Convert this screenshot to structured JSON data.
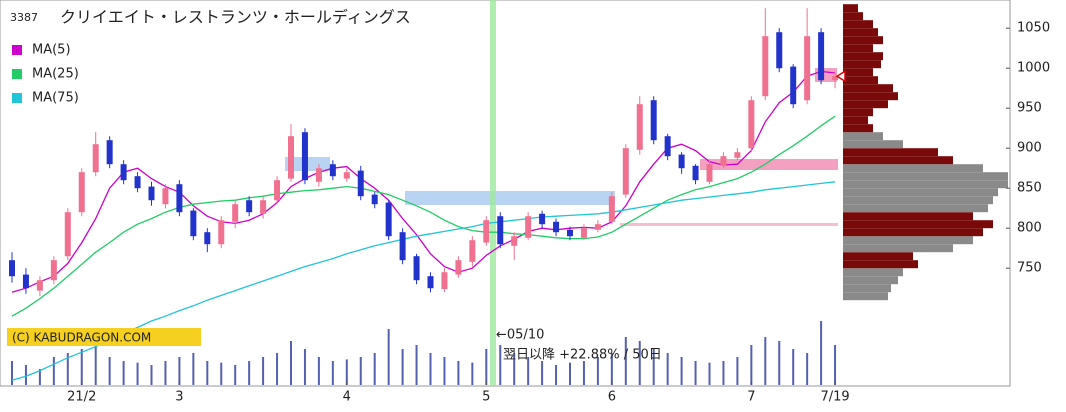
{
  "chart_data": {
    "type": "candlestick",
    "code": "3387",
    "title": "クリイエイト・レストランツ・ホールディングス",
    "categories": [
      null,
      null,
      null,
      null,
      null,
      "21/2",
      null,
      null,
      null,
      null,
      null,
      null,
      "3",
      null,
      null,
      null,
      null,
      null,
      null,
      null,
      null,
      null,
      null,
      null,
      "4",
      null,
      null,
      null,
      null,
      null,
      null,
      null,
      null,
      null,
      "5",
      null,
      null,
      null,
      null,
      null,
      null,
      null,
      null,
      "6",
      null,
      null,
      null,
      null,
      null,
      null,
      null,
      null,
      null,
      "7",
      null,
      null,
      null,
      null,
      null,
      "7/19"
    ],
    "open": [
      760,
      742,
      722,
      735,
      765,
      820,
      870,
      910,
      880,
      865,
      852,
      830,
      855,
      822,
      795,
      780,
      808,
      835,
      818,
      835,
      862,
      920,
      858,
      880,
      862,
      872,
      842,
      832,
      795,
      765,
      740,
      724,
      742,
      758,
      782,
      815,
      778,
      788,
      818,
      808,
      798,
      788,
      798,
      808,
      842,
      898,
      960,
      915,
      892,
      878,
      858,
      878,
      888,
      900,
      965,
      1045,
      1002,
      960,
      1045,
      985
    ],
    "high": [
      770,
      750,
      740,
      765,
      825,
      875,
      920,
      915,
      885,
      870,
      858,
      855,
      860,
      825,
      800,
      815,
      835,
      840,
      840,
      865,
      930,
      925,
      880,
      885,
      875,
      878,
      845,
      835,
      800,
      768,
      745,
      750,
      765,
      790,
      815,
      820,
      795,
      820,
      822,
      812,
      802,
      805,
      810,
      845,
      905,
      965,
      965,
      918,
      895,
      880,
      885,
      895,
      900,
      965,
      1075,
      1050,
      1005,
      1075,
      1050,
      995
    ],
    "low": [
      732,
      718,
      715,
      730,
      760,
      815,
      865,
      875,
      855,
      845,
      828,
      825,
      815,
      785,
      770,
      775,
      800,
      815,
      812,
      830,
      858,
      855,
      852,
      860,
      858,
      835,
      825,
      785,
      755,
      730,
      720,
      720,
      738,
      752,
      778,
      775,
      760,
      785,
      800,
      790,
      785,
      785,
      795,
      805,
      838,
      892,
      905,
      885,
      868,
      855,
      855,
      875,
      885,
      895,
      960,
      995,
      950,
      955,
      980,
      975
    ],
    "close": [
      740,
      725,
      735,
      760,
      820,
      870,
      905,
      880,
      860,
      850,
      835,
      850,
      820,
      790,
      780,
      810,
      830,
      820,
      835,
      860,
      915,
      860,
      875,
      865,
      870,
      840,
      830,
      790,
      760,
      735,
      725,
      745,
      760,
      785,
      810,
      780,
      790,
      815,
      805,
      795,
      790,
      800,
      805,
      840,
      900,
      955,
      910,
      890,
      875,
      860,
      880,
      890,
      895,
      960,
      1040,
      1000,
      955,
      1040,
      985,
      990
    ],
    "up_color": "#f07090",
    "down_color": "#2233cc",
    "series": [
      {
        "name": "MA(5)",
        "color": "#cc00cc",
        "values": [
          720,
          725,
          733,
          740,
          756,
          782,
          812,
          850,
          870,
          875,
          862,
          852,
          845,
          828,
          815,
          808,
          806,
          810,
          818,
          832,
          852,
          862,
          870,
          875,
          877,
          862,
          850,
          835,
          812,
          792,
          768,
          752,
          745,
          750,
          766,
          778,
          786,
          796,
          800,
          798,
          800,
          801,
          800,
          808,
          828,
          858,
          880,
          900,
          905,
          897,
          883,
          879,
          880,
          897,
          933,
          957,
          970,
          990,
          996,
          994
        ]
      },
      {
        "name": "MA(25)",
        "color": "#22cc66",
        "values": [
          690,
          700,
          712,
          725,
          740,
          755,
          770,
          782,
          795,
          805,
          812,
          820,
          826,
          830,
          832,
          834,
          835,
          838,
          840,
          843,
          845,
          847,
          848,
          850,
          852,
          850,
          846,
          842,
          835,
          828,
          820,
          810,
          802,
          797,
          795,
          795,
          793,
          792,
          790,
          788,
          787,
          787,
          789,
          795,
          805,
          815,
          825,
          835,
          842,
          848,
          852,
          857,
          862,
          870,
          880,
          892,
          903,
          915,
          928,
          940
        ]
      },
      {
        "name": "MA(75)",
        "color": "#22c4d8",
        "values": [
          610,
          615,
          622,
          630,
          638,
          645,
          652,
          660,
          668,
          676,
          684,
          690,
          697,
          703,
          710,
          716,
          722,
          728,
          734,
          740,
          746,
          752,
          757,
          762,
          768,
          773,
          778,
          782,
          786,
          790,
          793,
          796,
          799,
          802,
          806,
          808,
          810,
          812,
          814,
          815,
          816,
          817,
          818,
          820,
          823,
          826,
          829,
          832,
          835,
          837,
          839,
          841,
          843,
          845,
          848,
          850,
          852,
          854,
          856,
          858
        ]
      }
    ],
    "volume": {
      "color": "#5560b0",
      "ylim": [
        0,
        100
      ],
      "values": [
        30,
        25,
        20,
        35,
        40,
        45,
        50,
        35,
        30,
        28,
        25,
        30,
        35,
        40,
        30,
        28,
        25,
        30,
        35,
        40,
        55,
        45,
        35,
        30,
        32,
        35,
        40,
        70,
        45,
        50,
        40,
        35,
        30,
        28,
        45,
        50,
        40,
        35,
        30,
        25,
        28,
        30,
        35,
        40,
        60,
        55,
        45,
        40,
        35,
        30,
        28,
        30,
        35,
        50,
        60,
        55,
        45,
        40,
        80,
        50
      ]
    },
    "volume_profile": {
      "xlim": [
        0,
        170
      ],
      "bins": [
        710,
        720,
        730,
        740,
        750,
        760,
        770,
        780,
        790,
        800,
        810,
        820,
        830,
        840,
        850,
        860,
        870,
        880,
        890,
        900,
        910,
        920,
        930,
        940,
        950,
        960,
        970,
        980,
        990,
        1000,
        1010,
        1020,
        1030,
        1040,
        1050,
        1060,
        1070,
        1080
      ],
      "values": [
        45,
        48,
        55,
        60,
        75,
        70,
        110,
        130,
        140,
        150,
        130,
        145,
        150,
        155,
        165,
        165,
        140,
        110,
        95,
        60,
        40,
        30,
        25,
        30,
        45,
        55,
        50,
        35,
        30,
        38,
        40,
        30,
        40,
        35,
        30,
        20,
        15
      ],
      "colors": [
        "#8a8a8a",
        "#8a8a8a",
        "#8a8a8a",
        "#8a8a8a",
        "#7a0a0a",
        "#7a0a0a",
        "#8a8a8a",
        "#8a8a8a",
        "#7a0a0a",
        "#7a0a0a",
        "#7a0a0a",
        "#8a8a8a",
        "#8a8a8a",
        "#8a8a8a",
        "#8a8a8a",
        "#8a8a8a",
        "#8a8a8a",
        "#7a0a0a",
        "#7a0a0a",
        "#8a8a8a",
        "#8a8a8a",
        "#7a0a0a",
        "#7a0a0a",
        "#7a0a0a",
        "#7a0a0a",
        "#7a0a0a",
        "#7a0a0a",
        "#7a0a0a",
        "#7a0a0a",
        "#7a0a0a",
        "#7a0a0a",
        "#7a0a0a",
        "#7a0a0a",
        "#7a0a0a",
        "#7a0a0a",
        "#7a0a0a",
        "#7a0a0a"
      ]
    },
    "ylim": [
      604,
      1079
    ],
    "yticks": [
      750,
      800,
      850,
      900,
      950,
      1000,
      1050
    ],
    "annotations": {
      "marker_date": "←05/10",
      "performance": "翌日以降 +22.88% / 50日",
      "copyright": "(C) KABUDRAGON.COM"
    }
  }
}
